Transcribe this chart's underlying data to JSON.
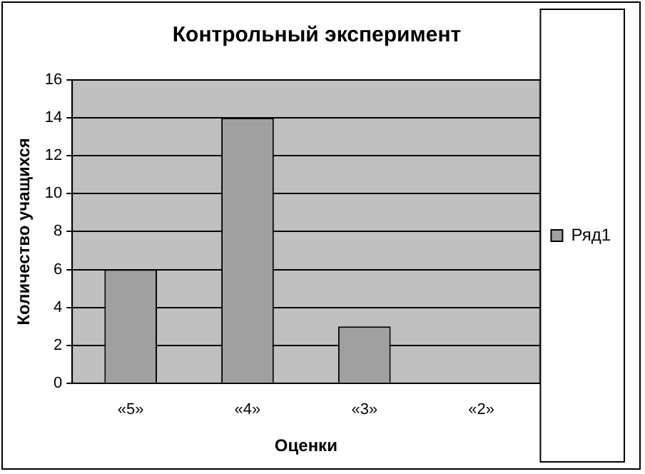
{
  "chart_data": {
    "type": "bar",
    "title": "Контрольный эксперимент",
    "xlabel": "Оценки",
    "ylabel": "Количество учащихся",
    "categories": [
      "«5»",
      "«4»",
      "«3»",
      "«2»"
    ],
    "series": [
      {
        "name": "Ряд1",
        "color": "#a0a0a0",
        "values": [
          6,
          14,
          3,
          0
        ]
      }
    ],
    "ylim": [
      0,
      16
    ],
    "yticks": [
      0,
      2,
      4,
      6,
      8,
      10,
      12,
      14,
      16
    ],
    "grid": "y",
    "legend": "right"
  }
}
